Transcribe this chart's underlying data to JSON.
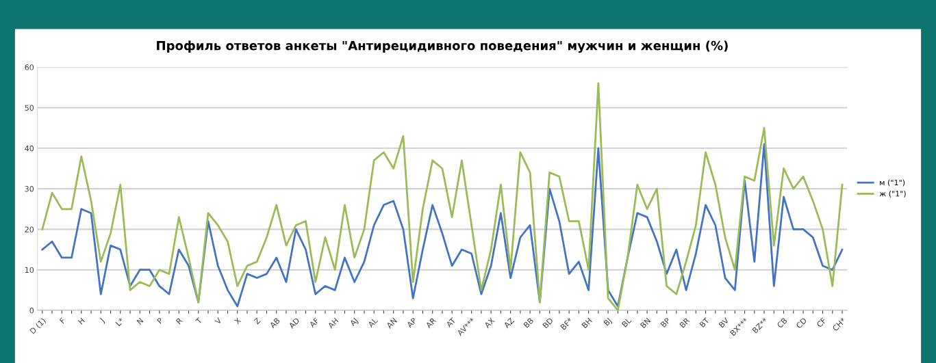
{
  "chart_data": {
    "type": "line",
    "title": "Профиль ответов анкеты \"Антирецидивного поведения\" мужчин и женщин (%)",
    "categories": [
      "D (1)",
      null,
      "F",
      null,
      "H",
      null,
      "J",
      null,
      "L*",
      null,
      "N",
      null,
      "P",
      null,
      "R",
      null,
      "T",
      null,
      "V",
      null,
      "X",
      null,
      "Z",
      null,
      "AB",
      null,
      "AD",
      null,
      "AF",
      null,
      "AH",
      null,
      "AJ",
      null,
      "AL",
      null,
      "AN",
      null,
      "AP",
      null,
      "AR",
      null,
      "AT",
      null,
      "AV***",
      null,
      "AX",
      null,
      "AZ",
      null,
      "BB",
      null,
      "BD",
      null,
      "BF*",
      null,
      "BH",
      null,
      "BJ",
      null,
      "BL",
      null,
      "BN",
      null,
      "BP",
      null,
      "BR",
      null,
      "BT",
      null,
      "BV",
      null,
      "BX***",
      null,
      "BZ**",
      null,
      "CB",
      null,
      "CD",
      null,
      "CF",
      null,
      "CH*"
    ],
    "series": [
      {
        "name": "м (\"1\")",
        "color": "#4472c4",
        "values": [
          15,
          17,
          13,
          13,
          25,
          24,
          4,
          16,
          15,
          6,
          10,
          10,
          6,
          4,
          15,
          11,
          2,
          22,
          11,
          5,
          1,
          9,
          8,
          9,
          13,
          7,
          20,
          15,
          4,
          6,
          5,
          13,
          7,
          12,
          21,
          26,
          27,
          20,
          3,
          15,
          26,
          19,
          11,
          15,
          14,
          4,
          11,
          24,
          8,
          18,
          21,
          2,
          30,
          22,
          9,
          12,
          5,
          40,
          5,
          1,
          13,
          24,
          23,
          17,
          9,
          15,
          5,
          14,
          26,
          21,
          8,
          5,
          32,
          12,
          41,
          6,
          28,
          20,
          20,
          18,
          11,
          10,
          15
        ]
      },
      {
        "name": "ж (\"1\")",
        "color": "#9bbb59",
        "values": [
          20,
          29,
          25,
          25,
          38,
          27,
          12,
          19,
          31,
          5,
          7,
          6,
          10,
          9,
          23,
          13,
          2,
          24,
          21,
          17,
          6,
          11,
          12,
          18,
          26,
          16,
          21,
          22,
          7,
          18,
          10,
          26,
          13,
          20,
          37,
          39,
          35,
          43,
          7,
          25,
          37,
          35,
          23,
          37,
          21,
          5,
          15,
          31,
          10,
          39,
          34,
          2,
          34,
          33,
          22,
          22,
          10,
          56,
          3,
          0,
          13,
          31,
          25,
          30,
          6,
          4,
          12,
          21,
          39,
          31,
          18,
          10,
          33,
          32,
          45,
          16,
          35,
          30,
          33,
          27,
          20,
          6,
          31
        ]
      }
    ],
    "ylim": [
      0,
      60
    ],
    "yticks": [
      0,
      10,
      20,
      30,
      40,
      50,
      60
    ],
    "grid": "y",
    "legend": "right",
    "marker": "none",
    "line_style": "solid"
  }
}
